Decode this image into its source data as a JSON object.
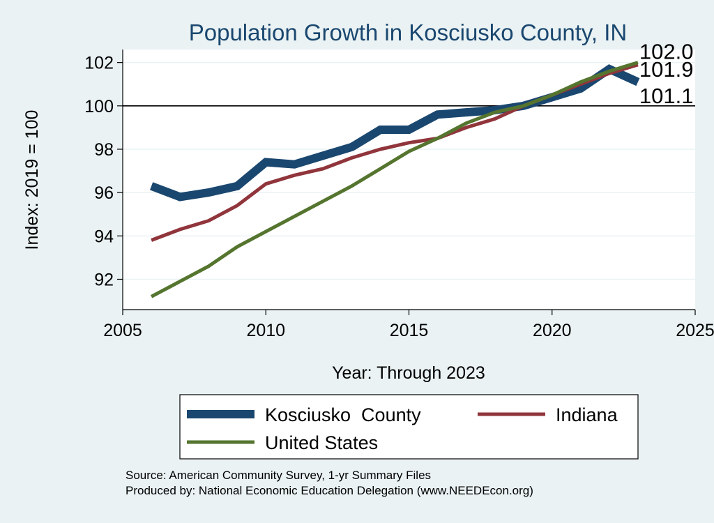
{
  "chart_data": {
    "type": "line",
    "title": "Population Growth in Kosciusko County, IN",
    "xlabel": "Year: Through 2023",
    "ylabel": "Index: 2019 = 100",
    "xlim": [
      2005,
      2025
    ],
    "ylim": [
      90.6,
      102.6
    ],
    "x_ticks": [
      2005,
      2010,
      2015,
      2020,
      2025
    ],
    "y_ticks": [
      92,
      94,
      96,
      98,
      100,
      102
    ],
    "reference_line": 100,
    "grid": "horizontal",
    "legend_position": "bottom",
    "x": [
      2006,
      2007,
      2008,
      2009,
      2010,
      2011,
      2012,
      2013,
      2014,
      2015,
      2016,
      2017,
      2018,
      2019,
      2020,
      2021,
      2022,
      2023
    ],
    "series": [
      {
        "name": "Kosciusko  County",
        "color": "#1a476f",
        "values": [
          96.3,
          95.8,
          96.0,
          96.3,
          97.4,
          97.3,
          97.7,
          98.1,
          98.9,
          98.9,
          99.6,
          99.7,
          99.8,
          100.0,
          100.4,
          100.8,
          101.7,
          101.1
        ],
        "end_label": "101.1"
      },
      {
        "name": "Indiana",
        "color": "#90353b",
        "values": [
          93.8,
          94.3,
          94.7,
          95.4,
          96.4,
          96.8,
          97.1,
          97.6,
          98.0,
          98.3,
          98.5,
          99.0,
          99.4,
          100.0,
          100.5,
          101.0,
          101.5,
          101.9
        ],
        "end_label": "101.9"
      },
      {
        "name": "United States",
        "color": "#55752f",
        "values": [
          91.2,
          91.9,
          92.6,
          93.5,
          94.2,
          94.9,
          95.6,
          96.3,
          97.1,
          97.9,
          98.5,
          99.2,
          99.7,
          100.0,
          100.5,
          101.1,
          101.6,
          102.0
        ],
        "end_label": "102.0"
      }
    ]
  },
  "source_line": "Source: American Community Survey, 1-yr Summary Files",
  "produced_line": "Produced by: National Economic Education Delegation (www.NEEDEcon.org)"
}
